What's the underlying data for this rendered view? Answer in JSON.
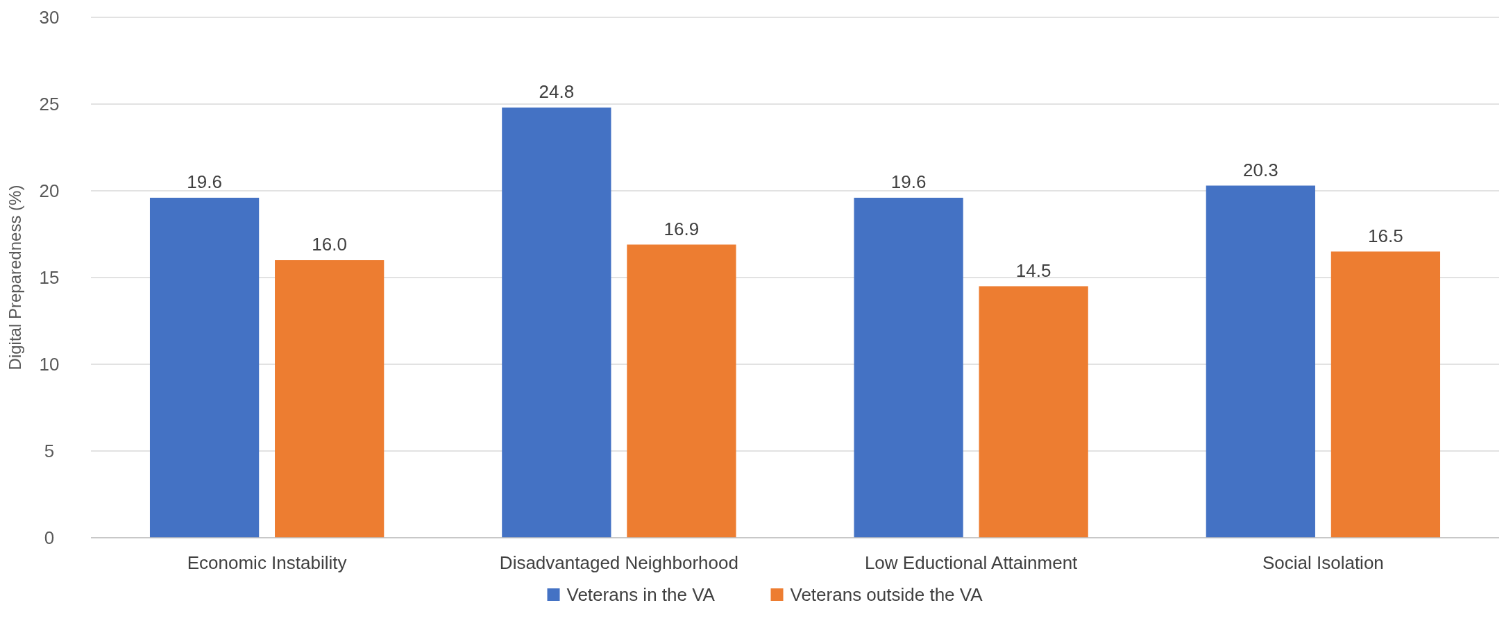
{
  "chart_data": {
    "type": "bar",
    "ylabel": "Digital Preparedness (%)",
    "categories": [
      "Economic Instability",
      "Disadvantaged Neighborhood",
      "Low Eductional Attainment",
      "Social Isolation"
    ],
    "series": [
      {
        "name": "Veterans in the VA",
        "color": "#4472c4",
        "values": [
          19.6,
          24.8,
          19.6,
          20.3
        ],
        "value_labels": [
          "19.6",
          "24.8",
          "19.6",
          "20.3"
        ]
      },
      {
        "name": "Veterans outside the VA",
        "color": "#ed7d31",
        "values": [
          16.0,
          16.9,
          14.5,
          16.5
        ],
        "value_labels": [
          "16.0",
          "16.9",
          "14.5",
          "16.5"
        ]
      }
    ],
    "ylim": [
      0,
      30
    ],
    "yticks": [
      0,
      5,
      10,
      15,
      20,
      25,
      30
    ],
    "grid": "y",
    "legend": "bottom"
  }
}
